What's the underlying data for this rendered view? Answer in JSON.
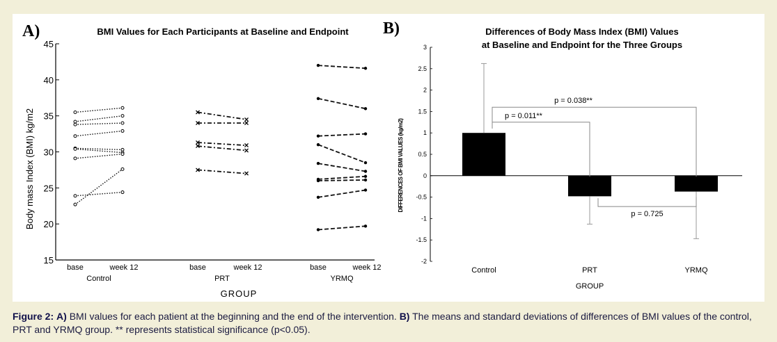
{
  "caption": {
    "prefix": "Figure 2:",
    "a_label": "A)",
    "a_text": "BMI values for each patient at the beginning and the end of the intervention.",
    "b_label": "B)",
    "b_text": "The means and standard deviations of differences of BMI values of the control, PRT and YRMQ group. ** represents statistical significance (p<0.05)."
  },
  "chart_data": [
    {
      "panel_label": "A)",
      "type": "line",
      "title": "BMI Values for Each Participants at Baseline and Endpoint",
      "xlabel": "GROUP",
      "ylabel": "Body mass Index (BMI) kg/m2",
      "ylim": [
        15,
        45
      ],
      "yticks": [
        15,
        20,
        25,
        30,
        35,
        40,
        45
      ],
      "grid": false,
      "groups": [
        {
          "name": "Control",
          "timepoints": [
            "base",
            "week 12"
          ],
          "marker": "circle",
          "line": "dotted",
          "pairs": [
            [
              35.5,
              36.1
            ],
            [
              34.2,
              35.0
            ],
            [
              33.8,
              34.0
            ],
            [
              32.2,
              32.9
            ],
            [
              30.5,
              30.3
            ],
            [
              30.4,
              29.9
            ],
            [
              29.1,
              29.7
            ],
            [
              23.9,
              24.4
            ],
            [
              22.7,
              27.6
            ]
          ]
        },
        {
          "name": "PRT",
          "timepoints": [
            "base",
            "week 12"
          ],
          "marker": "x",
          "line": "dashdot",
          "pairs": [
            [
              35.5,
              34.5
            ],
            [
              34.0,
              34.0
            ],
            [
              31.3,
              30.9
            ],
            [
              30.8,
              30.2
            ],
            [
              27.5,
              27.0
            ]
          ]
        },
        {
          "name": "YRMQ",
          "timepoints": [
            "base",
            "week 12"
          ],
          "marker": "dot",
          "line": "dashed",
          "pairs": [
            [
              42.0,
              41.6
            ],
            [
              37.4,
              36.0
            ],
            [
              32.2,
              32.5
            ],
            [
              31.0,
              28.5
            ],
            [
              28.4,
              27.3
            ],
            [
              26.2,
              26.6
            ],
            [
              26.0,
              26.1
            ],
            [
              23.7,
              24.7
            ],
            [
              19.2,
              19.7
            ]
          ]
        }
      ]
    },
    {
      "panel_label": "B)",
      "type": "bar",
      "title_lines": [
        "Differences of Body Mass Index (BMI) Values",
        "at Baseline and Endpoint for the Three Groups"
      ],
      "xlabel": "GROUP",
      "ylabel": "DIFFERENCES OF BMI VALUES (kg/m2)",
      "ylim": [
        -2,
        3
      ],
      "yticks": [
        "-2",
        "-1.5",
        "-1",
        "-0.5",
        "0",
        "0.5",
        "1",
        "1.5",
        "2",
        "2.5",
        "3"
      ],
      "categories": [
        "Control",
        "PRT",
        "YRMQ"
      ],
      "values": [
        1.0,
        -0.48,
        -0.37
      ],
      "error_sd": [
        1.62,
        0.65,
        1.1
      ],
      "bar_color": "#000000",
      "annotations": [
        {
          "text": "p = 0.011**",
          "from": "Control",
          "to": "PRT"
        },
        {
          "text": "p = 0.038**",
          "from": "Control",
          "to": "YRMQ"
        },
        {
          "text": "p = 0.725",
          "from": "PRT",
          "to": "YRMQ"
        }
      ]
    }
  ]
}
